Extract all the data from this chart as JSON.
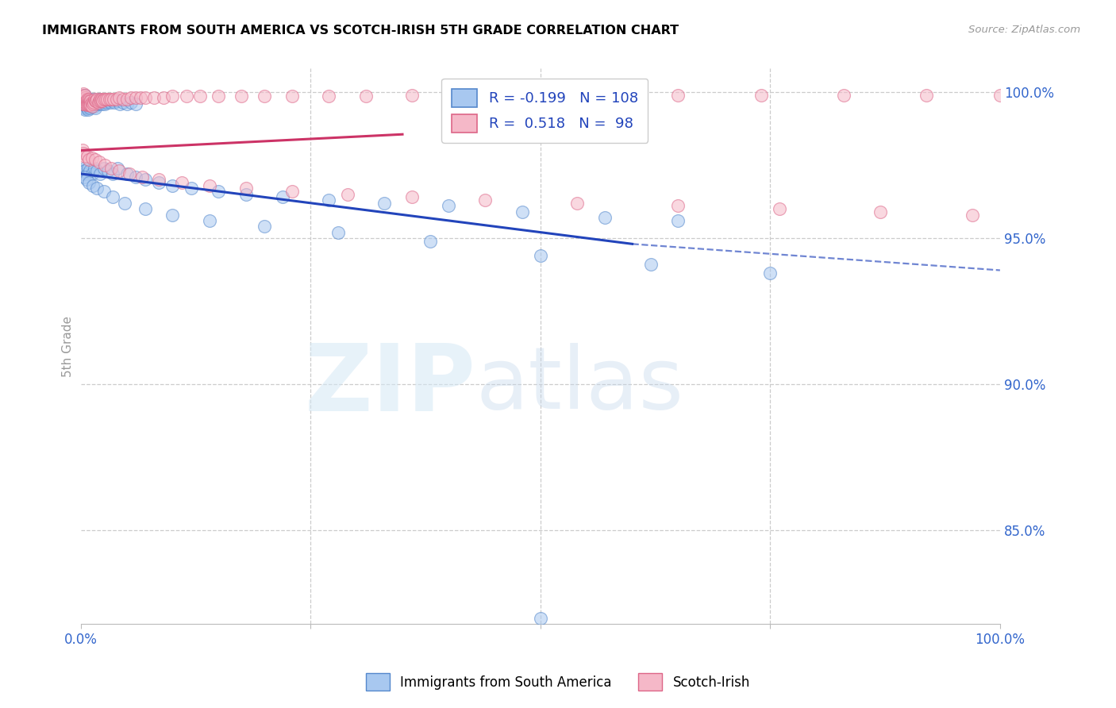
{
  "title": "IMMIGRANTS FROM SOUTH AMERICA VS SCOTCH-IRISH 5TH GRADE CORRELATION CHART",
  "source": "Source: ZipAtlas.com",
  "ylabel": "5th Grade",
  "ytick_labels": [
    "85.0%",
    "90.0%",
    "95.0%",
    "100.0%"
  ],
  "ytick_values": [
    0.85,
    0.9,
    0.95,
    1.0
  ],
  "xmin": 0.0,
  "xmax": 1.0,
  "ymin": 0.818,
  "ymax": 1.008,
  "legend_blue_label": "Immigrants from South America",
  "legend_pink_label": "Scotch-Irish",
  "blue_R": "-0.199",
  "blue_N": "108",
  "pink_R": "0.518",
  "pink_N": "98",
  "blue_color": "#A8C8F0",
  "pink_color": "#F5B8C8",
  "blue_edge_color": "#5588CC",
  "pink_edge_color": "#DD6688",
  "blue_line_color": "#2244BB",
  "pink_line_color": "#CC3366",
  "blue_line_start_x": 0.0,
  "blue_line_start_y": 0.972,
  "blue_line_solid_end_x": 0.6,
  "blue_line_solid_end_y": 0.948,
  "blue_line_dash_end_x": 1.0,
  "blue_line_dash_end_y": 0.939,
  "pink_line_start_x": 0.0,
  "pink_line_start_y": 0.98,
  "pink_line_solid_end_x": 0.35,
  "pink_line_solid_end_y": 0.9855,
  "blue_scatter_x": [
    0.001,
    0.001,
    0.002,
    0.002,
    0.002,
    0.003,
    0.003,
    0.003,
    0.004,
    0.004,
    0.004,
    0.005,
    0.005,
    0.005,
    0.005,
    0.006,
    0.006,
    0.007,
    0.007,
    0.007,
    0.008,
    0.008,
    0.008,
    0.009,
    0.009,
    0.01,
    0.01,
    0.01,
    0.011,
    0.011,
    0.012,
    0.012,
    0.013,
    0.014,
    0.014,
    0.015,
    0.015,
    0.016,
    0.016,
    0.017,
    0.018,
    0.019,
    0.02,
    0.021,
    0.022,
    0.023,
    0.024,
    0.025,
    0.026,
    0.028,
    0.03,
    0.032,
    0.035,
    0.037,
    0.04,
    0.043,
    0.046,
    0.05,
    0.055,
    0.06,
    0.002,
    0.003,
    0.004,
    0.005,
    0.007,
    0.008,
    0.01,
    0.012,
    0.015,
    0.018,
    0.021,
    0.025,
    0.03,
    0.035,
    0.04,
    0.05,
    0.06,
    0.07,
    0.085,
    0.1,
    0.12,
    0.15,
    0.18,
    0.22,
    0.27,
    0.33,
    0.4,
    0.48,
    0.57,
    0.65,
    0.004,
    0.006,
    0.009,
    0.013,
    0.018,
    0.025,
    0.035,
    0.048,
    0.07,
    0.1,
    0.14,
    0.2,
    0.28,
    0.38,
    0.5,
    0.62,
    0.75,
    0.5
  ],
  "blue_scatter_y": [
    0.998,
    0.996,
    0.997,
    0.9985,
    0.995,
    0.9975,
    0.999,
    0.9955,
    0.9975,
    0.996,
    0.9945,
    0.997,
    0.9955,
    0.994,
    0.999,
    0.9965,
    0.995,
    0.9975,
    0.996,
    0.9945,
    0.997,
    0.9955,
    0.994,
    0.9965,
    0.995,
    0.9975,
    0.996,
    0.9945,
    0.997,
    0.9955,
    0.9965,
    0.995,
    0.996,
    0.9975,
    0.9955,
    0.997,
    0.995,
    0.9965,
    0.9945,
    0.996,
    0.997,
    0.996,
    0.9975,
    0.9965,
    0.997,
    0.996,
    0.997,
    0.9965,
    0.996,
    0.9965,
    0.997,
    0.9965,
    0.997,
    0.9965,
    0.997,
    0.996,
    0.9965,
    0.996,
    0.9965,
    0.996,
    0.973,
    0.972,
    0.974,
    0.973,
    0.972,
    0.974,
    0.973,
    0.972,
    0.974,
    0.973,
    0.972,
    0.974,
    0.973,
    0.972,
    0.974,
    0.972,
    0.971,
    0.97,
    0.969,
    0.968,
    0.967,
    0.966,
    0.965,
    0.964,
    0.963,
    0.962,
    0.961,
    0.959,
    0.957,
    0.956,
    0.971,
    0.97,
    0.969,
    0.968,
    0.967,
    0.966,
    0.964,
    0.962,
    0.96,
    0.958,
    0.956,
    0.954,
    0.952,
    0.949,
    0.944,
    0.941,
    0.938,
    0.82
  ],
  "pink_scatter_x": [
    0.001,
    0.001,
    0.002,
    0.002,
    0.003,
    0.003,
    0.003,
    0.004,
    0.004,
    0.005,
    0.005,
    0.005,
    0.006,
    0.006,
    0.007,
    0.007,
    0.008,
    0.008,
    0.009,
    0.009,
    0.01,
    0.01,
    0.011,
    0.011,
    0.012,
    0.012,
    0.013,
    0.014,
    0.015,
    0.016,
    0.017,
    0.018,
    0.019,
    0.02,
    0.021,
    0.022,
    0.023,
    0.024,
    0.025,
    0.027,
    0.029,
    0.031,
    0.033,
    0.036,
    0.039,
    0.042,
    0.046,
    0.05,
    0.055,
    0.06,
    0.065,
    0.07,
    0.08,
    0.09,
    0.1,
    0.115,
    0.13,
    0.15,
    0.175,
    0.2,
    0.23,
    0.27,
    0.31,
    0.36,
    0.42,
    0.49,
    0.57,
    0.65,
    0.74,
    0.83,
    0.92,
    1.0,
    0.002,
    0.003,
    0.005,
    0.007,
    0.009,
    0.012,
    0.016,
    0.02,
    0.026,
    0.033,
    0.042,
    0.053,
    0.067,
    0.085,
    0.11,
    0.14,
    0.18,
    0.23,
    0.29,
    0.36,
    0.44,
    0.54,
    0.65,
    0.76,
    0.87,
    0.97
  ],
  "pink_scatter_y": [
    0.999,
    0.997,
    0.998,
    0.996,
    0.9985,
    0.997,
    0.9995,
    0.9975,
    0.996,
    0.998,
    0.9965,
    0.999,
    0.997,
    0.9955,
    0.9975,
    0.996,
    0.997,
    0.9955,
    0.9975,
    0.996,
    0.997,
    0.9955,
    0.997,
    0.9955,
    0.9965,
    0.995,
    0.996,
    0.9965,
    0.9975,
    0.997,
    0.997,
    0.9975,
    0.9965,
    0.997,
    0.9975,
    0.997,
    0.9975,
    0.997,
    0.9975,
    0.9975,
    0.9975,
    0.9975,
    0.9975,
    0.9975,
    0.9975,
    0.998,
    0.9975,
    0.9975,
    0.998,
    0.998,
    0.998,
    0.998,
    0.998,
    0.998,
    0.9985,
    0.9985,
    0.9985,
    0.9985,
    0.9985,
    0.9985,
    0.9985,
    0.9985,
    0.9985,
    0.999,
    0.999,
    0.999,
    0.999,
    0.999,
    0.999,
    0.999,
    0.999,
    0.999,
    0.98,
    0.979,
    0.978,
    0.978,
    0.977,
    0.9775,
    0.977,
    0.976,
    0.975,
    0.974,
    0.973,
    0.972,
    0.971,
    0.97,
    0.969,
    0.968,
    0.967,
    0.966,
    0.965,
    0.964,
    0.963,
    0.962,
    0.961,
    0.96,
    0.959,
    0.958
  ]
}
